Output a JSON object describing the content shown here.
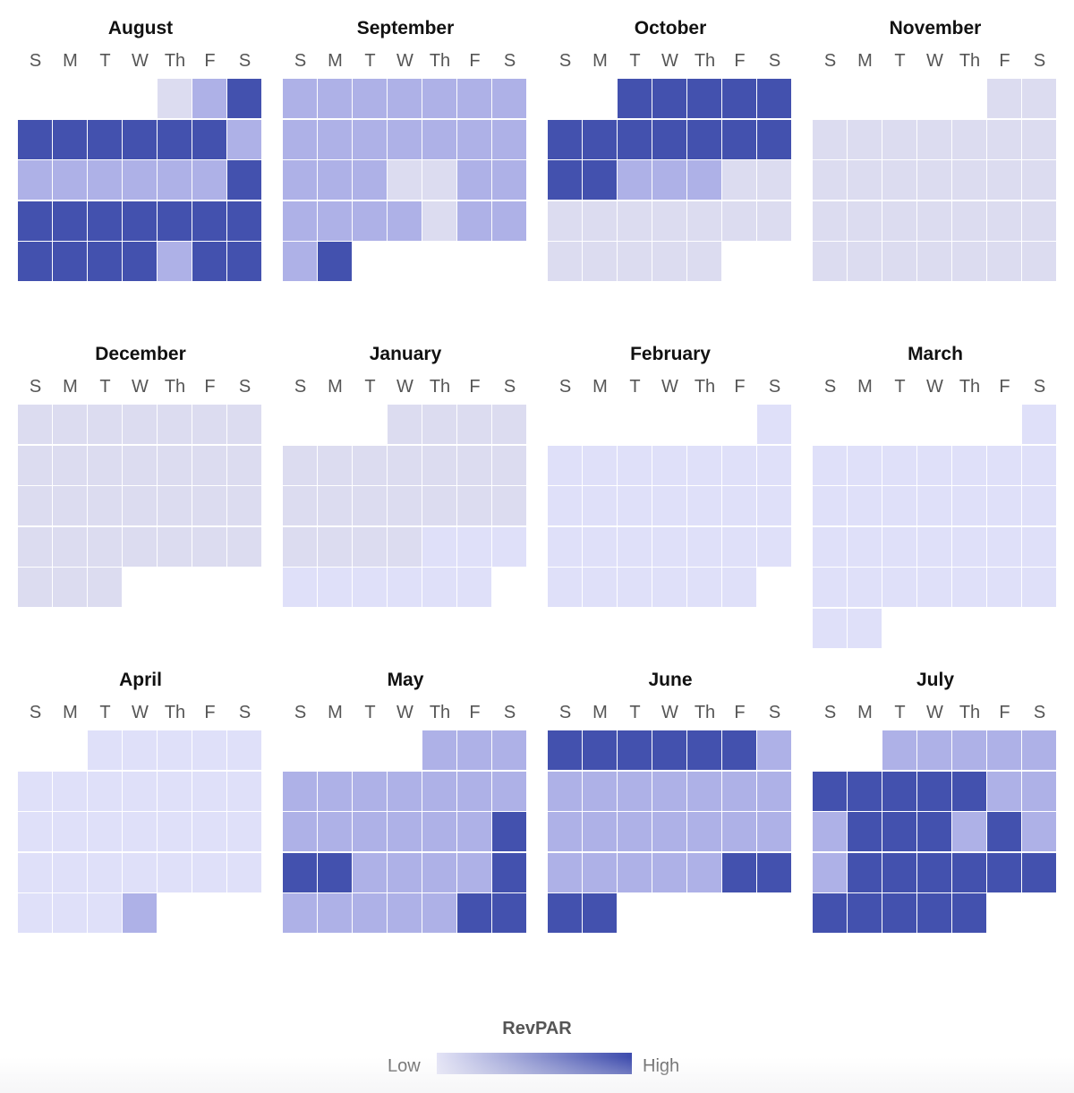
{
  "chart_data": {
    "type": "heatmap",
    "title": "",
    "weekday_labels": [
      "S",
      "M",
      "T",
      "W",
      "Th",
      "F",
      "S"
    ],
    "value_scale": {
      "min": 0,
      "max": 100
    },
    "colorscale": [
      {
        "max": 15,
        "color": "#dcdcf0"
      },
      {
        "max": 30,
        "color": "#dfe0f9"
      },
      {
        "max": 70,
        "color": "#aeb1e7"
      },
      {
        "max": 100,
        "color": "#4351ae"
      }
    ],
    "months": [
      {
        "name": "August",
        "start_weekday": 4,
        "values": [
          10,
          55,
          95,
          95,
          95,
          95,
          95,
          95,
          95,
          55,
          55,
          55,
          55,
          55,
          55,
          55,
          95,
          95,
          95,
          95,
          95,
          95,
          95,
          95,
          95,
          95,
          95,
          95,
          55,
          95,
          95
        ]
      },
      {
        "name": "September",
        "start_weekday": 0,
        "values": [
          55,
          55,
          55,
          55,
          55,
          55,
          55,
          55,
          55,
          55,
          55,
          55,
          55,
          55,
          55,
          55,
          55,
          10,
          10,
          55,
          55,
          55,
          55,
          55,
          55,
          10,
          55,
          55,
          55,
          95
        ]
      },
      {
        "name": "October",
        "start_weekday": 2,
        "values": [
          95,
          95,
          95,
          95,
          95,
          95,
          95,
          95,
          95,
          95,
          95,
          95,
          95,
          95,
          55,
          55,
          55,
          10,
          10,
          10,
          10,
          10,
          10,
          10,
          10,
          10,
          10,
          10,
          10,
          10,
          10
        ]
      },
      {
        "name": "November",
        "start_weekday": 5,
        "values": [
          10,
          10,
          10,
          10,
          10,
          10,
          10,
          10,
          10,
          10,
          10,
          10,
          10,
          10,
          10,
          10,
          10,
          10,
          10,
          10,
          10,
          10,
          10,
          10,
          10,
          10,
          10,
          10,
          10,
          10
        ]
      },
      {
        "name": "December",
        "start_weekday": 0,
        "values": [
          10,
          10,
          10,
          10,
          10,
          10,
          10,
          10,
          10,
          10,
          10,
          10,
          10,
          10,
          10,
          10,
          10,
          10,
          10,
          10,
          10,
          10,
          10,
          10,
          10,
          10,
          10,
          10,
          10,
          10,
          10
        ]
      },
      {
        "name": "January",
        "start_weekday": 3,
        "values": [
          10,
          10,
          10,
          10,
          10,
          10,
          10,
          10,
          10,
          10,
          10,
          10,
          10,
          10,
          10,
          10,
          10,
          10,
          10,
          10,
          10,
          10,
          20,
          20,
          20,
          20,
          20,
          20,
          20,
          20,
          20
        ]
      },
      {
        "name": "February",
        "start_weekday": 6,
        "values": [
          20,
          20,
          20,
          20,
          20,
          20,
          20,
          20,
          20,
          20,
          20,
          20,
          20,
          20,
          20,
          20,
          20,
          20,
          20,
          20,
          20,
          20,
          20,
          20,
          20,
          20,
          20,
          20
        ]
      },
      {
        "name": "March",
        "start_weekday": 6,
        "values": [
          20,
          20,
          20,
          20,
          20,
          20,
          20,
          20,
          20,
          20,
          20,
          20,
          20,
          20,
          20,
          20,
          20,
          20,
          20,
          20,
          20,
          20,
          20,
          20,
          20,
          20,
          20,
          20,
          20,
          20,
          20
        ]
      },
      {
        "name": "April",
        "start_weekday": 2,
        "values": [
          20,
          20,
          20,
          20,
          20,
          20,
          20,
          20,
          20,
          20,
          20,
          20,
          20,
          20,
          20,
          20,
          20,
          20,
          20,
          20,
          20,
          20,
          20,
          20,
          20,
          20,
          20,
          20,
          20,
          55
        ]
      },
      {
        "name": "May",
        "start_weekday": 4,
        "values": [
          55,
          55,
          55,
          55,
          55,
          55,
          55,
          55,
          55,
          55,
          55,
          55,
          55,
          55,
          55,
          55,
          95,
          95,
          95,
          55,
          55,
          55,
          55,
          95,
          55,
          55,
          55,
          55,
          55,
          95,
          95
        ]
      },
      {
        "name": "June",
        "start_weekday": 0,
        "values": [
          95,
          95,
          95,
          95,
          95,
          95,
          55,
          55,
          55,
          55,
          55,
          55,
          55,
          55,
          55,
          55,
          55,
          55,
          55,
          55,
          55,
          55,
          55,
          55,
          55,
          55,
          95,
          95,
          95,
          95
        ]
      },
      {
        "name": "July",
        "start_weekday": 2,
        "values": [
          55,
          55,
          55,
          55,
          55,
          95,
          95,
          95,
          95,
          95,
          55,
          55,
          55,
          95,
          95,
          95,
          55,
          95,
          55,
          55,
          95,
          95,
          95,
          95,
          95,
          95,
          95,
          95,
          95,
          95,
          95
        ]
      }
    ],
    "legend": {
      "title": "RevPAR",
      "low_label": "Low",
      "high_label": "High",
      "gradient": [
        "#e4e4f6",
        "#3d4bad"
      ],
      "placement": "bottom-center"
    }
  }
}
